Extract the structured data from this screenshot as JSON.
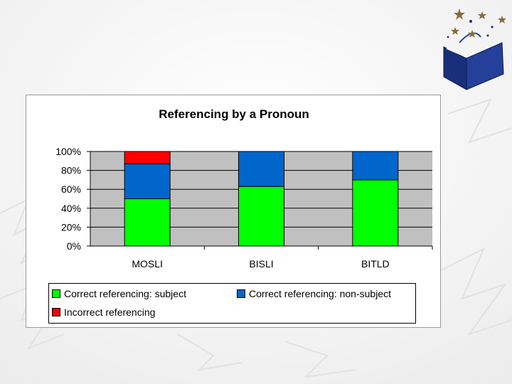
{
  "chart_data": {
    "type": "bar",
    "stacked": true,
    "title": "Referencing by a Pronoun",
    "categories": [
      "MOSLI",
      "BISLI",
      "BITLD"
    ],
    "series": [
      {
        "name": "Correct referencing: subject",
        "color": "#00ff00",
        "values": [
          50,
          63,
          70
        ]
      },
      {
        "name": "Correct referencing: non-subject",
        "color": "#0066cc",
        "values": [
          37,
          37,
          30
        ]
      },
      {
        "name": "Incorrect referencing",
        "color": "#ff0000",
        "values": [
          13,
          0,
          0
        ]
      }
    ],
    "ylim": [
      0,
      100
    ],
    "yticks": [
      "0%",
      "20%",
      "40%",
      "60%",
      "80%",
      "100%"
    ],
    "grid": true,
    "plot_background": "#c0c0c0",
    "legend_position": "bottom"
  }
}
